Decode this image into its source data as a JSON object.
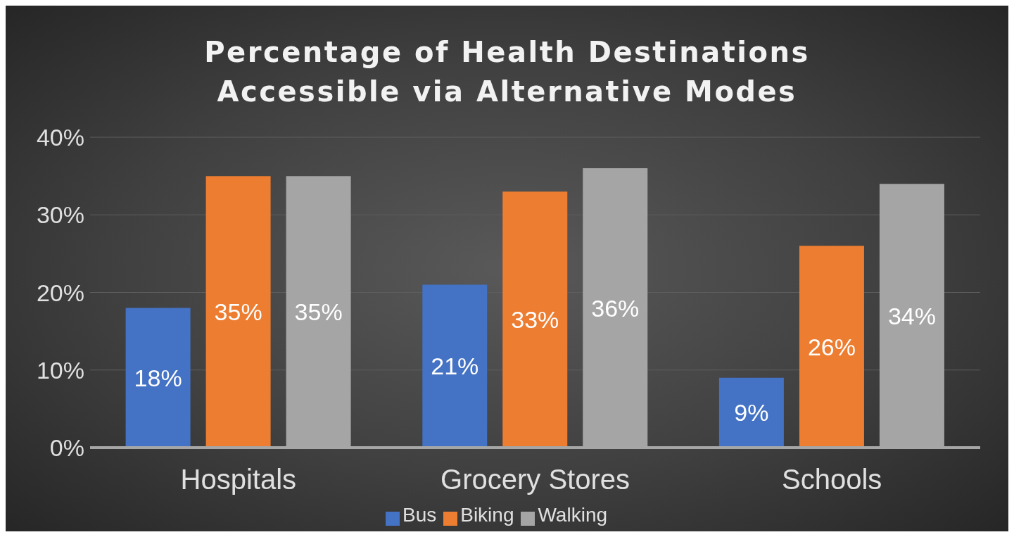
{
  "chart_data": {
    "type": "bar",
    "title": "Percentage of Health Destinations Accessible via Alternative Modes",
    "categories": [
      "Hospitals",
      "Grocery Stores",
      "Schools"
    ],
    "series": [
      {
        "name": "Bus",
        "color": "#4472c4",
        "values": [
          18,
          21,
          9
        ],
        "value_labels": [
          "18%",
          "21%",
          "9%"
        ]
      },
      {
        "name": "Biking",
        "color": "#ed7d31",
        "values": [
          35,
          33,
          26
        ],
        "value_labels": [
          "35%",
          "33%",
          "26%"
        ]
      },
      {
        "name": "Walking",
        "color": "#a5a5a5",
        "values": [
          35,
          36,
          34
        ],
        "value_labels": [
          "35%",
          "36%",
          "34%"
        ]
      }
    ],
    "ylim": [
      0,
      40
    ],
    "yticks": [
      {
        "value": 0,
        "label": "0%"
      },
      {
        "value": 10,
        "label": "10%"
      },
      {
        "value": 20,
        "label": "20%"
      },
      {
        "value": 30,
        "label": "30%"
      },
      {
        "value": 40,
        "label": "40%"
      }
    ],
    "grid": "y",
    "legend": "bottom"
  }
}
